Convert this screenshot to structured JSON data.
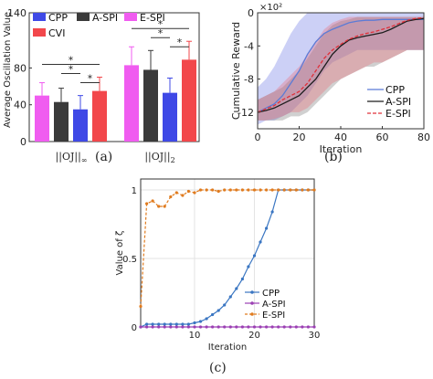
{
  "captions": [
    "(a)",
    "(b)",
    "(c)"
  ],
  "colors": {
    "cpp": "#3f49e6",
    "aspi": "#3a3a3a",
    "espi": "#f05cf0",
    "cvi": "#f2474b",
    "b_cpp": "#5b7bd6",
    "b_aspi": "#1c1c1c",
    "b_espi": "#e0303a",
    "c_cpp": "#3a76c2",
    "c_aspi": "#9b3fb3",
    "c_espi": "#e07b1e"
  },
  "chart_data": [
    {
      "id": "a",
      "type": "bar",
      "ylabel": "Average Oscillation Value",
      "ylim": [
        0,
        140
      ],
      "yticks": [
        0,
        40,
        80,
        140
      ],
      "groups": [
        "||OJI||∞",
        "||OJI||2"
      ],
      "group_labels": [
        {
          "base": "||OJ||",
          "sub": "∞"
        },
        {
          "base": "||OJ||",
          "sub": "2"
        }
      ],
      "series": [
        {
          "name": "E-SPI",
          "values": [
            50,
            83
          ],
          "errors": [
            14,
            20
          ]
        },
        {
          "name": "A-SPI",
          "values": [
            43,
            78
          ],
          "errors": [
            15,
            21
          ]
        },
        {
          "name": "CPP",
          "values": [
            35,
            53
          ],
          "errors": [
            15,
            16
          ]
        },
        {
          "name": "CVI",
          "values": [
            55,
            89
          ],
          "errors": [
            15,
            20
          ]
        }
      ],
      "legend": [
        "CPP",
        "A-SPI",
        "E-SPI",
        "CVI"
      ],
      "significance": "*"
    },
    {
      "id": "b",
      "type": "line",
      "xlabel": "Iteration",
      "ylabel": "Cumulative Reward",
      "multiplier": "×10²",
      "xlim": [
        0,
        80
      ],
      "ylim": [
        -14,
        0
      ],
      "xticks": [
        0,
        20,
        40,
        60,
        80
      ],
      "yticks": [
        -12,
        -8,
        -4,
        0
      ],
      "legend_position": "bottom-right",
      "x": [
        0,
        4,
        8,
        12,
        16,
        20,
        24,
        28,
        32,
        36,
        40,
        44,
        48,
        52,
        56,
        60,
        64,
        68,
        72,
        76,
        80
      ],
      "series": [
        {
          "name": "CPP",
          "values": [
            -12,
            -11.5,
            -11,
            -10,
            -8.5,
            -7,
            -5,
            -3.5,
            -2.5,
            -2,
            -1.6,
            -1.2,
            -1,
            -0.9,
            -0.9,
            -0.8,
            -0.8,
            -0.8,
            -0.8,
            -0.8,
            -0.8
          ],
          "lower": [
            -13.5,
            -13,
            -13,
            -12.5,
            -12,
            -11,
            -10,
            -8.5,
            -7,
            -6,
            -5.5,
            -5,
            -4.5,
            -4.5,
            -4.5,
            -4.5,
            -4.5,
            -4.5,
            -4.5,
            -4.5,
            -4.5
          ],
          "upper": [
            -9,
            -8,
            -6.5,
            -4.5,
            -2.5,
            -1,
            0,
            0,
            0,
            0,
            0,
            0,
            0,
            0,
            0,
            0,
            0,
            0,
            0,
            0,
            0
          ]
        },
        {
          "name": "A-SPI",
          "values": [
            -12,
            -11.8,
            -11.5,
            -11,
            -10.5,
            -10,
            -9,
            -8,
            -6.5,
            -5,
            -4,
            -3.3,
            -3,
            -2.8,
            -2.6,
            -2.4,
            -2,
            -1.5,
            -1,
            -0.8,
            -0.7
          ],
          "lower": [
            -13,
            -13,
            -13,
            -13,
            -12.5,
            -12.5,
            -12,
            -11,
            -10,
            -9,
            -8,
            -7.5,
            -7,
            -6.5,
            -6.5,
            -6,
            -5.5,
            -5,
            -4.5,
            -4.5,
            -4.5
          ],
          "upper": [
            -10.5,
            -10,
            -9.5,
            -9,
            -8,
            -7,
            -5.5,
            -4,
            -2.5,
            -1.5,
            -1,
            -0.8,
            -0.5,
            -0.5,
            -0.5,
            -0.5,
            -0.5,
            -0.5,
            -0.5,
            -0.5,
            -0.5
          ]
        },
        {
          "name": "E-SPI",
          "values": [
            -12,
            -11.6,
            -11.2,
            -10.5,
            -10,
            -9.5,
            -8.5,
            -7,
            -5.5,
            -4.5,
            -3.8,
            -3.2,
            -2.8,
            -2.5,
            -2.3,
            -2,
            -1.7,
            -1.3,
            -0.9,
            -0.7,
            -0.6
          ],
          "lower": [
            -13,
            -13,
            -12.8,
            -12.5,
            -12,
            -12,
            -11.5,
            -10.5,
            -9.5,
            -8.5,
            -8,
            -7.5,
            -7,
            -6.5,
            -6,
            -6,
            -5.5,
            -5,
            -4.5,
            -4.5,
            -4.5
          ],
          "upper": [
            -10.5,
            -10,
            -9.5,
            -8.5,
            -7.5,
            -6.5,
            -5,
            -3.5,
            -2,
            -1.2,
            -0.8,
            -0.5,
            -0.5,
            -0.5,
            -0.5,
            -0.5,
            -0.5,
            -0.5,
            -0.5,
            -0.5,
            -0.5
          ]
        }
      ]
    },
    {
      "id": "c",
      "type": "line",
      "xlabel": "Iteration",
      "ylabel": "Value of ζ",
      "xlim": [
        1,
        30
      ],
      "ylim": [
        0,
        1.08
      ],
      "xticks": [
        10,
        20,
        30
      ],
      "yticks": [
        0,
        0.5,
        1
      ],
      "legend_position": "bottom-right",
      "x": [
        1,
        2,
        3,
        4,
        5,
        6,
        7,
        8,
        9,
        10,
        11,
        12,
        13,
        14,
        15,
        16,
        17,
        18,
        19,
        20,
        21,
        22,
        23,
        24,
        25,
        26,
        27,
        28,
        29,
        30
      ],
      "series": [
        {
          "name": "CPP",
          "values": [
            0,
            0.02,
            0.02,
            0.02,
            0.02,
            0.02,
            0.02,
            0.02,
            0.02,
            0.03,
            0.04,
            0.06,
            0.09,
            0.12,
            0.16,
            0.22,
            0.28,
            0.35,
            0.44,
            0.52,
            0.62,
            0.72,
            0.84,
            1,
            1,
            1,
            1,
            1,
            1,
            1
          ]
        },
        {
          "name": "A-SPI",
          "values": [
            0,
            0,
            0,
            0,
            0,
            0,
            0,
            0,
            0,
            0,
            0,
            0,
            0,
            0,
            0,
            0,
            0,
            0,
            0,
            0,
            0,
            0,
            0,
            0,
            0,
            0,
            0,
            0,
            0,
            0
          ]
        },
        {
          "name": "E-SPI",
          "values": [
            0.15,
            0.9,
            0.92,
            0.88,
            0.88,
            0.95,
            0.98,
            0.96,
            0.99,
            0.98,
            1,
            1,
            1,
            0.99,
            1,
            1,
            1,
            1,
            1,
            1,
            1,
            1,
            1,
            1,
            1,
            1,
            1,
            1,
            1,
            1
          ]
        }
      ]
    }
  ]
}
